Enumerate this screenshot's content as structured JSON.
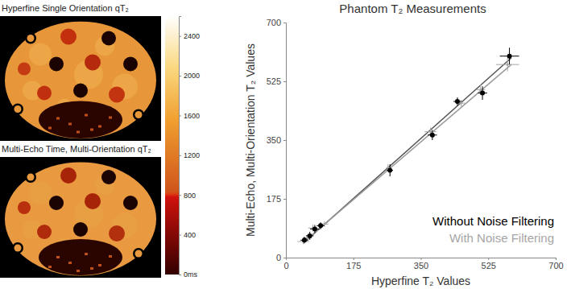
{
  "chart_data": [
    {
      "type": "image",
      "title": "Hyperfine Single Orientation qT₂"
    },
    {
      "type": "image",
      "title": "Multi-Echo Time, Multi-Orientation qT₂"
    },
    {
      "type": "colorbar",
      "range": [
        0,
        2600
      ],
      "ticks": [
        {
          "value": 0,
          "label": "0ms"
        },
        400,
        800,
        1200,
        1600,
        2000,
        2400
      ]
    },
    {
      "type": "scatter",
      "title": "Phantom T₂ Measurements",
      "x_label": "Hyperfine T₂ Values",
      "y_label": "Multi-Echo, Multi-Orientation T₂ Values",
      "xlim": [
        0,
        700
      ],
      "ylim": [
        0,
        700
      ],
      "xticks": [
        0,
        175,
        350,
        525,
        700
      ],
      "yticks": [
        0,
        175,
        350,
        525,
        700
      ],
      "grid": false,
      "legend": "bottom-right",
      "series": [
        {
          "name": "Without Noise Filtering",
          "color": "#000000",
          "marker": "circle",
          "x": [
            48,
            62,
            75,
            90,
            270,
            380,
            445,
            510,
            580
          ],
          "values": [
            52,
            65,
            85,
            95,
            260,
            365,
            465,
            490,
            600
          ],
          "x_err": [
            10,
            10,
            12,
            10,
            8,
            12,
            10,
            12,
            25
          ],
          "y_err": [
            10,
            12,
            12,
            10,
            18,
            15,
            12,
            20,
            25
          ]
        },
        {
          "name": "With Noise Filtering",
          "color": "#a6a6a6",
          "marker": "dot",
          "x": [
            45,
            55,
            70,
            100,
            265,
            375,
            455,
            505,
            575
          ],
          "values": [
            48,
            58,
            88,
            100,
            268,
            375,
            460,
            500,
            575
          ],
          "x_err": [
            15,
            12,
            12,
            10,
            5,
            15,
            10,
            12,
            30
          ],
          "y_err": [
            8,
            10,
            10,
            8,
            10,
            12,
            10,
            15,
            20
          ]
        },
        {
          "type": "line",
          "color": "#555555",
          "line_style": "solid",
          "x": [
            50,
            585
          ],
          "values": [
            48,
            595
          ]
        },
        {
          "type": "line",
          "color": "#9a9a9a",
          "line_style": "solid",
          "x": [
            50,
            585
          ],
          "values": [
            50,
            575
          ]
        }
      ]
    }
  ]
}
